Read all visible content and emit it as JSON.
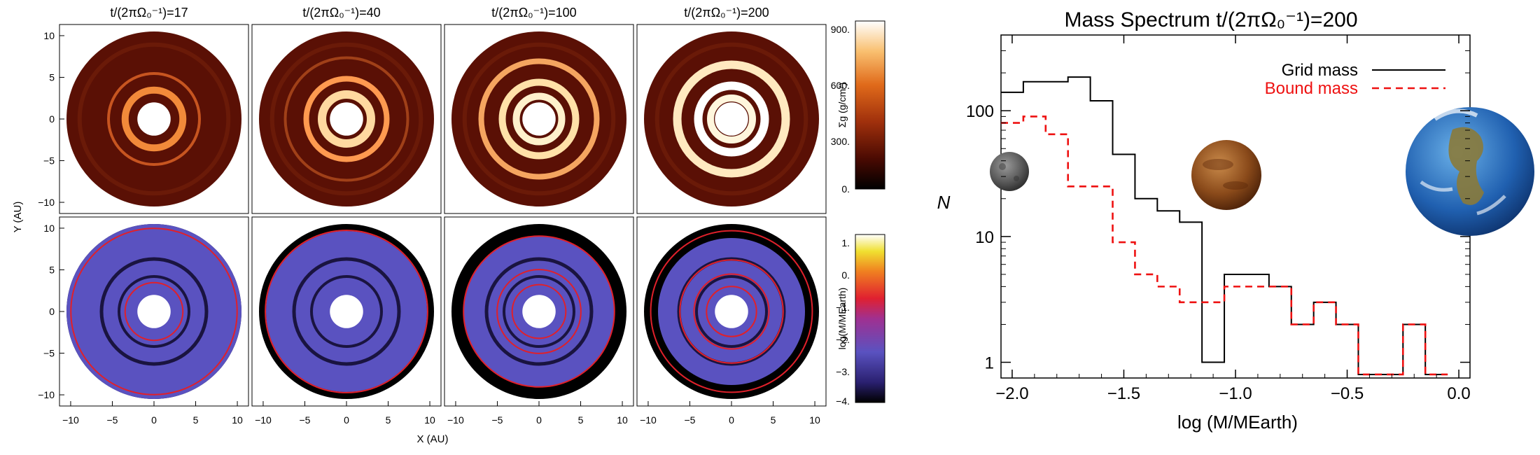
{
  "panels": {
    "titles": [
      "t/(2πΩ₀⁻¹)=17",
      "t/(2πΩ₀⁻¹)=40",
      "t/(2πΩ₀⁻¹)=100",
      "t/(2πΩ₀⁻¹)=200"
    ],
    "xlabel": "X (AU)",
    "ylabel": "Y (AU)",
    "x_ticks": [
      "−10",
      "−5",
      "0",
      "5",
      "10"
    ],
    "y_ticks": [
      "10",
      "5",
      "0",
      "−5",
      "−10"
    ],
    "top_colorbar": {
      "label": "Σg (g/cm²)",
      "ticks": [
        "900.",
        "600.",
        "300.",
        "0."
      ],
      "range": [
        0,
        900
      ]
    },
    "bottom_colorbar": {
      "label": "log(M/MEarth)",
      "ticks": [
        "1.",
        "0.",
        "−1.",
        "−2.",
        "−3.",
        "−4."
      ],
      "range": [
        -4,
        1
      ]
    },
    "colors": {
      "disk_dark": "#5a1005",
      "disk_ring_bright": "#fff1cc",
      "disk_mid": "#a83a12",
      "mass_bg": "#5a52c0",
      "mass_outer": "#000000",
      "ring_red": "#e0202a"
    }
  },
  "chart_data": {
    "type": "histogram",
    "title": "Mass Spectrum t/(2πΩ₀⁻¹)=200",
    "xlabel": "log (M/MEarth)",
    "ylabel": "N",
    "xlim": [
      -2.05,
      0.05
    ],
    "ylim_log": [
      0.75,
      400
    ],
    "y_scale": "log",
    "x_ticks": [
      -2.0,
      -1.5,
      -1.0,
      -0.5,
      0.0
    ],
    "x_tick_labels": [
      "−2.0",
      "−1.5",
      "−1.0",
      "−0.5",
      "0.0"
    ],
    "y_ticks": [
      1,
      10,
      100
    ],
    "y_tick_labels": [
      "1",
      "10",
      "100"
    ],
    "legend_position": "top-right",
    "bin_edges": [
      -2.05,
      -1.95,
      -1.85,
      -1.75,
      -1.65,
      -1.55,
      -1.45,
      -1.35,
      -1.25,
      -1.15,
      -1.05,
      -0.95,
      -0.85,
      -0.75,
      -0.65,
      -0.55,
      -0.45,
      -0.35,
      -0.25,
      -0.15,
      -0.05
    ],
    "series": [
      {
        "name": "Grid mass",
        "color": "#000000",
        "dash": "solid",
        "values": [
          140,
          170,
          170,
          185,
          120,
          45,
          20,
          16,
          13,
          1,
          5,
          5,
          4,
          2,
          3,
          2,
          0.8,
          0.8,
          2,
          0.8
        ]
      },
      {
        "name": "Bound mass",
        "color": "#ee1111",
        "dash": "dashed",
        "values": [
          80,
          90,
          65,
          25,
          25,
          9,
          5,
          4,
          3,
          3,
          4,
          4,
          4,
          2,
          3,
          2,
          0.8,
          0.8,
          2,
          0.8
        ]
      }
    ]
  }
}
